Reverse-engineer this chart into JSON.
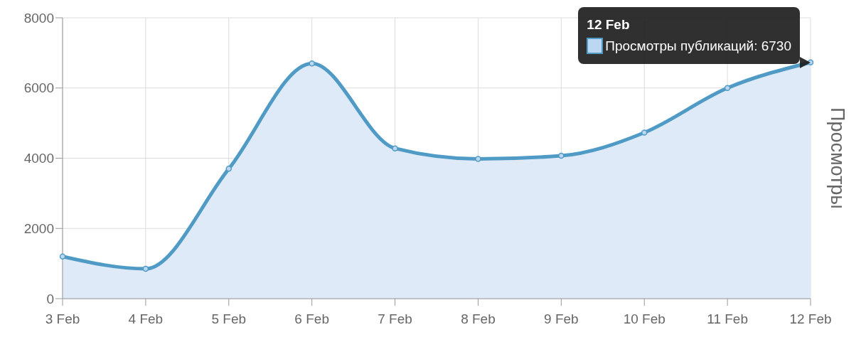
{
  "chart_data": {
    "type": "area",
    "ylabel": "Просмотры",
    "categories": [
      "3 Feb",
      "4 Feb",
      "5 Feb",
      "6 Feb",
      "7 Feb",
      "8 Feb",
      "9 Feb",
      "10 Feb",
      "11 Feb",
      "12 Feb"
    ],
    "series": [
      {
        "color": "#4f9bc6",
        "values": [
          1200,
          850,
          3700,
          6700,
          4280,
          3980,
          4070,
          4730,
          6000,
          6730
        ]
      }
    ],
    "ylim": [
      0,
      8000
    ],
    "yticks": [
      0,
      2000,
      4000,
      6000,
      8000
    ],
    "grid": true,
    "marker": "circle",
    "annotations": [
      "12 Feb",
      {
        "text": "Просмотры публикаций: 6730",
        "x": "12 Feb",
        "y": 6730
      }
    ]
  }
}
